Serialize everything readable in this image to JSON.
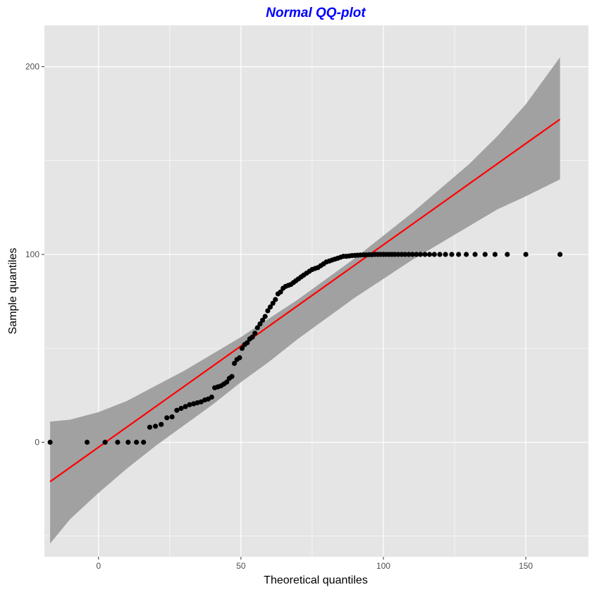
{
  "chart_data": {
    "type": "scatter",
    "title": "Normal QQ-plot",
    "xlabel": "Theoretical quantiles",
    "ylabel": "Sample quantiles",
    "xlim": [
      -19,
      172
    ],
    "ylim": [
      -61,
      222
    ],
    "x_ticks": [
      0,
      50,
      100,
      150
    ],
    "y_ticks": [
      0,
      100,
      200
    ],
    "grid": true,
    "colors": {
      "title": "#0000ff",
      "panel": "#e5e5e5",
      "grid": "#ffffff",
      "points": "#000000",
      "line": "#ff0000",
      "band": "#999999"
    },
    "points": {
      "x": [
        -17,
        -4,
        2.3,
        6.7,
        10.4,
        13.3,
        15.8,
        18,
        20,
        22,
        24,
        25.8,
        27.5,
        29,
        30.5,
        32,
        33.4,
        34.7,
        36,
        37.3,
        38.5,
        39.7,
        40.8,
        41.9,
        43,
        44,
        45,
        45.9,
        46.8,
        47.7,
        48.6,
        49.5,
        50.4,
        51.3,
        52.2,
        53.1,
        54,
        54.9,
        55.8,
        56.7,
        57.6,
        58.5,
        59.4,
        60.3,
        61.2,
        62.1,
        63,
        63.9,
        64.8,
        65.7,
        66.6,
        67.5,
        68.4,
        69.3,
        70.2,
        71.1,
        72,
        73,
        74,
        75,
        76,
        77,
        78,
        79,
        80,
        81,
        82,
        83,
        84,
        85,
        86,
        87,
        88,
        89,
        90,
        91,
        92,
        93,
        94,
        95,
        96,
        97,
        98,
        99,
        100,
        101,
        102,
        103,
        104,
        105.2,
        106.4,
        107.6,
        108.9,
        110.2,
        111.6,
        113,
        114.6,
        116.2,
        117.9,
        119.8,
        121.8,
        124,
        126.4,
        129.1,
        132.2,
        135.7,
        139.2,
        143.5,
        150,
        162
      ],
      "y": [
        0,
        0,
        0,
        0,
        0,
        0,
        0,
        8,
        8.5,
        9.5,
        13,
        13.5,
        17,
        18,
        19,
        20,
        20.5,
        21,
        21.5,
        22.5,
        23,
        24,
        29,
        29.5,
        30,
        31,
        32,
        34,
        35,
        42,
        44,
        45,
        50,
        52,
        53,
        55,
        56,
        58,
        61,
        63,
        65,
        67,
        70,
        72,
        74,
        76,
        79,
        80,
        82,
        83,
        83.5,
        84,
        85,
        86,
        87,
        88,
        89,
        90,
        91,
        92,
        92.5,
        93,
        94,
        95,
        96,
        96.5,
        97,
        97.5,
        98,
        98.5,
        99,
        99,
        99.2,
        99.4,
        99.5,
        99.6,
        99.7,
        99.8,
        99.8,
        99.9,
        99.9,
        100,
        100,
        100,
        100,
        100,
        100,
        100,
        100,
        100,
        100,
        100,
        100,
        100,
        100,
        100,
        100,
        100,
        100,
        100,
        100,
        100,
        100,
        100,
        100,
        100,
        100,
        100,
        100,
        100
      ]
    },
    "reference_line": {
      "x": [
        -17,
        162
      ],
      "y": [
        -21,
        172
      ]
    },
    "confidence_band": {
      "x": [
        -17,
        -10,
        0,
        10,
        20,
        30,
        40,
        50,
        60,
        70,
        80,
        90,
        100,
        110,
        120,
        130,
        140,
        150,
        162
      ],
      "lower": [
        -54,
        -41,
        -27,
        -14,
        -2,
        9,
        20,
        32,
        43,
        55,
        66,
        77,
        87,
        97,
        106,
        115,
        124,
        131,
        140
      ],
      "upper": [
        11,
        12,
        16,
        22,
        30,
        38,
        47,
        56,
        66,
        76,
        87,
        98,
        110,
        122,
        135,
        148,
        163,
        180,
        205
      ]
    }
  }
}
